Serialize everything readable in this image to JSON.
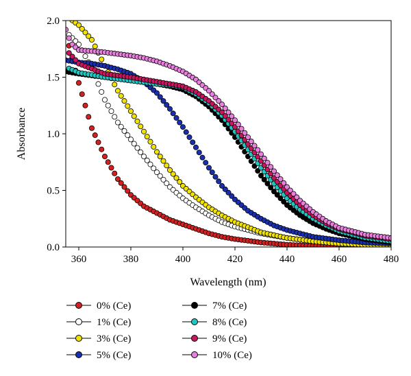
{
  "chart_data": {
    "type": "scatter",
    "xlabel": "Wavelength (nm)",
    "ylabel": "Absorbance",
    "xlim": [
      355,
      480
    ],
    "ylim": [
      0,
      2.0
    ],
    "xticks": [
      360,
      380,
      400,
      420,
      440,
      460,
      480
    ],
    "xtick_labels": [
      "360",
      "380",
      "400",
      "420",
      "440",
      "460",
      "480"
    ],
    "yticks": [
      0,
      0.5,
      1.0,
      1.5,
      2.0
    ],
    "ytick_labels": [
      "0.0",
      "0.5",
      "1.0",
      "1.5",
      "2.0"
    ],
    "grid": false,
    "legend_position": "bottom",
    "x_start": 355,
    "x_step": 1.25,
    "series": [
      {
        "name": "0% (Ce)",
        "color": "#d42020",
        "points": [
          [
            356,
            1.8
          ],
          [
            360,
            1.45
          ],
          [
            365,
            1.05
          ],
          [
            370,
            0.8
          ],
          [
            375,
            0.6
          ],
          [
            380,
            0.46
          ],
          [
            385,
            0.36
          ],
          [
            390,
            0.3
          ],
          [
            395,
            0.24
          ],
          [
            400,
            0.2
          ],
          [
            405,
            0.16
          ],
          [
            410,
            0.12
          ],
          [
            415,
            0.09
          ],
          [
            420,
            0.07
          ],
          [
            430,
            0.04
          ],
          [
            440,
            0.02
          ],
          [
            450,
            0.01
          ],
          [
            460,
            0.01
          ],
          [
            480,
            0.01
          ]
        ]
      },
      {
        "name": "1% (Ce)",
        "color": "#ffffff",
        "points": [
          [
            356,
            1.88
          ],
          [
            360,
            1.79
          ],
          [
            365,
            1.58
          ],
          [
            370,
            1.3
          ],
          [
            375,
            1.1
          ],
          [
            380,
            0.95
          ],
          [
            385,
            0.8
          ],
          [
            390,
            0.66
          ],
          [
            395,
            0.53
          ],
          [
            400,
            0.43
          ],
          [
            405,
            0.35
          ],
          [
            410,
            0.28
          ],
          [
            415,
            0.22
          ],
          [
            420,
            0.18
          ],
          [
            430,
            0.12
          ],
          [
            440,
            0.08
          ],
          [
            450,
            0.05
          ],
          [
            460,
            0.03
          ],
          [
            470,
            0.02
          ],
          [
            480,
            0.01
          ]
        ]
      },
      {
        "name": "3% (Ce)",
        "color": "#f2e200",
        "points": [
          [
            357,
            2.01
          ],
          [
            360,
            1.96
          ],
          [
            365,
            1.83
          ],
          [
            370,
            1.6
          ],
          [
            375,
            1.38
          ],
          [
            380,
            1.2
          ],
          [
            385,
            1.02
          ],
          [
            390,
            0.84
          ],
          [
            395,
            0.68
          ],
          [
            400,
            0.54
          ],
          [
            405,
            0.44
          ],
          [
            410,
            0.35
          ],
          [
            415,
            0.28
          ],
          [
            420,
            0.22
          ],
          [
            430,
            0.13
          ],
          [
            440,
            0.08
          ],
          [
            450,
            0.05
          ],
          [
            460,
            0.03
          ],
          [
            470,
            0.02
          ],
          [
            480,
            0.01
          ]
        ]
      },
      {
        "name": "5% (Ce)",
        "color": "#1a2fb0",
        "points": [
          [
            355,
            1.65
          ],
          [
            360,
            1.63
          ],
          [
            365,
            1.62
          ],
          [
            370,
            1.6
          ],
          [
            375,
            1.57
          ],
          [
            380,
            1.53
          ],
          [
            385,
            1.46
          ],
          [
            390,
            1.36
          ],
          [
            395,
            1.22
          ],
          [
            400,
            1.06
          ],
          [
            405,
            0.88
          ],
          [
            410,
            0.7
          ],
          [
            415,
            0.54
          ],
          [
            420,
            0.42
          ],
          [
            425,
            0.32
          ],
          [
            430,
            0.25
          ],
          [
            435,
            0.19
          ],
          [
            440,
            0.15
          ],
          [
            450,
            0.09
          ],
          [
            460,
            0.06
          ],
          [
            470,
            0.04
          ],
          [
            480,
            0.03
          ]
        ]
      },
      {
        "name": "7% (Ce)",
        "color": "#000000",
        "points": [
          [
            355,
            1.55
          ],
          [
            360,
            1.53
          ],
          [
            370,
            1.5
          ],
          [
            380,
            1.47
          ],
          [
            390,
            1.44
          ],
          [
            395,
            1.42
          ],
          [
            400,
            1.39
          ],
          [
            405,
            1.33
          ],
          [
            410,
            1.24
          ],
          [
            415,
            1.12
          ],
          [
            420,
            0.97
          ],
          [
            425,
            0.8
          ],
          [
            430,
            0.63
          ],
          [
            435,
            0.49
          ],
          [
            440,
            0.37
          ],
          [
            445,
            0.28
          ],
          [
            450,
            0.21
          ],
          [
            455,
            0.16
          ],
          [
            460,
            0.12
          ],
          [
            470,
            0.07
          ],
          [
            480,
            0.04
          ]
        ]
      },
      {
        "name": "8% (Ce)",
        "color": "#1fc7c3",
        "points": [
          [
            356,
            1.58
          ],
          [
            360,
            1.54
          ],
          [
            370,
            1.5
          ],
          [
            380,
            1.47
          ],
          [
            390,
            1.44
          ],
          [
            395,
            1.43
          ],
          [
            400,
            1.41
          ],
          [
            405,
            1.35
          ],
          [
            410,
            1.27
          ],
          [
            415,
            1.16
          ],
          [
            420,
            1.02
          ],
          [
            425,
            0.86
          ],
          [
            430,
            0.7
          ],
          [
            435,
            0.56
          ],
          [
            440,
            0.43
          ],
          [
            445,
            0.33
          ],
          [
            450,
            0.25
          ],
          [
            455,
            0.19
          ],
          [
            460,
            0.14
          ],
          [
            470,
            0.08
          ],
          [
            480,
            0.05
          ]
        ]
      },
      {
        "name": "9% (Ce)",
        "color": "#c8155e",
        "points": [
          [
            356,
            1.72
          ],
          [
            360,
            1.62
          ],
          [
            370,
            1.53
          ],
          [
            380,
            1.5
          ],
          [
            390,
            1.46
          ],
          [
            395,
            1.44
          ],
          [
            400,
            1.42
          ],
          [
            405,
            1.37
          ],
          [
            410,
            1.29
          ],
          [
            415,
            1.19
          ],
          [
            420,
            1.06
          ],
          [
            425,
            0.91
          ],
          [
            430,
            0.76
          ],
          [
            435,
            0.61
          ],
          [
            440,
            0.48
          ],
          [
            445,
            0.37
          ],
          [
            450,
            0.28
          ],
          [
            455,
            0.21
          ],
          [
            460,
            0.16
          ],
          [
            470,
            0.1
          ],
          [
            480,
            0.07
          ]
        ]
      },
      {
        "name": "10% (Ce)",
        "color": "#e680dc",
        "points": [
          [
            355,
            1.92
          ],
          [
            357,
            1.8
          ],
          [
            360,
            1.74
          ],
          [
            365,
            1.73
          ],
          [
            370,
            1.72
          ],
          [
            380,
            1.69
          ],
          [
            385,
            1.67
          ],
          [
            390,
            1.64
          ],
          [
            395,
            1.6
          ],
          [
            400,
            1.55
          ],
          [
            405,
            1.48
          ],
          [
            410,
            1.38
          ],
          [
            415,
            1.26
          ],
          [
            420,
            1.12
          ],
          [
            425,
            0.97
          ],
          [
            430,
            0.82
          ],
          [
            435,
            0.67
          ],
          [
            440,
            0.53
          ],
          [
            445,
            0.41
          ],
          [
            450,
            0.31
          ],
          [
            455,
            0.23
          ],
          [
            460,
            0.17
          ],
          [
            470,
            0.11
          ],
          [
            480,
            0.08
          ]
        ]
      }
    ]
  }
}
